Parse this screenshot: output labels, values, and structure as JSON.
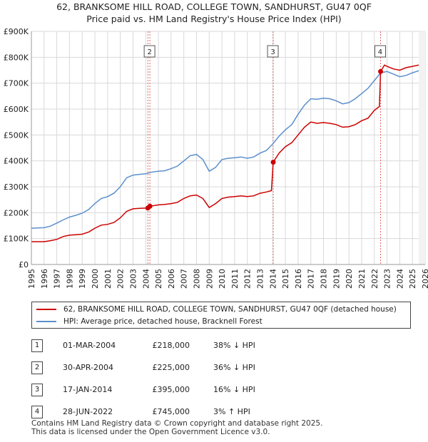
{
  "chart_data": {
    "type": "line",
    "title": "62, BRANKSOME HILL ROAD, COLLEGE TOWN, SANDHURST, GU47 0QF",
    "subtitle": "Price paid vs. HM Land Registry's House Price Index (HPI)",
    "xlim": [
      1995,
      2026
    ],
    "ylim": [
      0,
      900000
    ],
    "x_ticks": [
      "1995",
      "1996",
      "1997",
      "1998",
      "1999",
      "2000",
      "2001",
      "2002",
      "2003",
      "2004",
      "2005",
      "2006",
      "2007",
      "2008",
      "2009",
      "2010",
      "2011",
      "2012",
      "2013",
      "2014",
      "2015",
      "2016",
      "2017",
      "2018",
      "2019",
      "2020",
      "2021",
      "2022",
      "2023",
      "2024",
      "2025",
      "2026"
    ],
    "y_ticks": [
      {
        "value": 0,
        "label": "£0"
      },
      {
        "value": 100000,
        "label": "£100K"
      },
      {
        "value": 200000,
        "label": "£200K"
      },
      {
        "value": 300000,
        "label": "£300K"
      },
      {
        "value": 400000,
        "label": "£400K"
      },
      {
        "value": 500000,
        "label": "£500K"
      },
      {
        "value": 600000,
        "label": "£600K"
      },
      {
        "value": 700000,
        "label": "£700K"
      },
      {
        "value": 800000,
        "label": "£800K"
      },
      {
        "value": 900000,
        "label": "£900K"
      }
    ],
    "series": [
      {
        "name": "62, BRANKSOME HILL ROAD, COLLEGE TOWN, SANDHURST, GU47 0QF (detached house)",
        "color": "#cc0000",
        "points": [
          [
            1995.0,
            88000
          ],
          [
            1996.0,
            88000
          ],
          [
            1996.5,
            92000
          ],
          [
            1997.0,
            97000
          ],
          [
            1997.5,
            108000
          ],
          [
            1998.0,
            113000
          ],
          [
            1998.5,
            115000
          ],
          [
            1999.0,
            117000
          ],
          [
            1999.5,
            125000
          ],
          [
            2000.0,
            140000
          ],
          [
            2000.5,
            152000
          ],
          [
            2001.0,
            155000
          ],
          [
            2001.5,
            162000
          ],
          [
            2002.0,
            180000
          ],
          [
            2002.5,
            205000
          ],
          [
            2003.0,
            215000
          ],
          [
            2003.5,
            217000
          ],
          [
            2004.17,
            218000
          ],
          [
            2004.33,
            225000
          ],
          [
            2005.0,
            230000
          ],
          [
            2005.5,
            232000
          ],
          [
            2006.0,
            235000
          ],
          [
            2006.5,
            240000
          ],
          [
            2007.0,
            255000
          ],
          [
            2007.5,
            265000
          ],
          [
            2008.0,
            268000
          ],
          [
            2008.5,
            255000
          ],
          [
            2009.0,
            220000
          ],
          [
            2009.5,
            235000
          ],
          [
            2010.0,
            255000
          ],
          [
            2010.5,
            260000
          ],
          [
            2011.0,
            262000
          ],
          [
            2011.5,
            265000
          ],
          [
            2012.0,
            262000
          ],
          [
            2012.5,
            265000
          ],
          [
            2013.0,
            275000
          ],
          [
            2013.5,
            280000
          ],
          [
            2013.9,
            285000
          ],
          [
            2014.04,
            395000
          ],
          [
            2014.5,
            430000
          ],
          [
            2015.0,
            455000
          ],
          [
            2015.5,
            470000
          ],
          [
            2016.0,
            500000
          ],
          [
            2016.5,
            530000
          ],
          [
            2017.0,
            550000
          ],
          [
            2017.5,
            545000
          ],
          [
            2018.0,
            548000
          ],
          [
            2018.5,
            545000
          ],
          [
            2019.0,
            540000
          ],
          [
            2019.5,
            530000
          ],
          [
            2020.0,
            532000
          ],
          [
            2020.5,
            540000
          ],
          [
            2021.0,
            555000
          ],
          [
            2021.5,
            565000
          ],
          [
            2022.0,
            595000
          ],
          [
            2022.4,
            610000
          ],
          [
            2022.49,
            745000
          ],
          [
            2022.8,
            770000
          ],
          [
            2023.0,
            765000
          ],
          [
            2023.5,
            755000
          ],
          [
            2024.0,
            750000
          ],
          [
            2024.5,
            760000
          ],
          [
            2025.0,
            765000
          ],
          [
            2025.5,
            770000
          ]
        ]
      },
      {
        "name": "HPI: Average price, detached house, Bracknell Forest",
        "color": "#5b8fcc",
        "points": [
          [
            1995.0,
            140000
          ],
          [
            1996.0,
            142000
          ],
          [
            1996.5,
            148000
          ],
          [
            1997.0,
            160000
          ],
          [
            1997.5,
            172000
          ],
          [
            1998.0,
            183000
          ],
          [
            1998.5,
            190000
          ],
          [
            1999.0,
            198000
          ],
          [
            1999.5,
            212000
          ],
          [
            2000.0,
            235000
          ],
          [
            2000.5,
            255000
          ],
          [
            2001.0,
            262000
          ],
          [
            2001.5,
            275000
          ],
          [
            2002.0,
            300000
          ],
          [
            2002.5,
            335000
          ],
          [
            2003.0,
            345000
          ],
          [
            2003.5,
            348000
          ],
          [
            2004.0,
            350000
          ],
          [
            2004.5,
            357000
          ],
          [
            2005.0,
            360000
          ],
          [
            2005.5,
            362000
          ],
          [
            2006.0,
            370000
          ],
          [
            2006.5,
            380000
          ],
          [
            2007.0,
            400000
          ],
          [
            2007.5,
            420000
          ],
          [
            2008.0,
            425000
          ],
          [
            2008.5,
            405000
          ],
          [
            2009.0,
            360000
          ],
          [
            2009.5,
            375000
          ],
          [
            2010.0,
            405000
          ],
          [
            2010.5,
            410000
          ],
          [
            2011.0,
            412000
          ],
          [
            2011.5,
            415000
          ],
          [
            2012.0,
            410000
          ],
          [
            2012.5,
            415000
          ],
          [
            2013.0,
            430000
          ],
          [
            2013.5,
            440000
          ],
          [
            2014.0,
            465000
          ],
          [
            2014.5,
            495000
          ],
          [
            2015.0,
            520000
          ],
          [
            2015.5,
            540000
          ],
          [
            2016.0,
            580000
          ],
          [
            2016.5,
            615000
          ],
          [
            2017.0,
            640000
          ],
          [
            2017.5,
            638000
          ],
          [
            2018.0,
            642000
          ],
          [
            2018.5,
            640000
          ],
          [
            2019.0,
            632000
          ],
          [
            2019.5,
            620000
          ],
          [
            2020.0,
            625000
          ],
          [
            2020.5,
            640000
          ],
          [
            2021.0,
            660000
          ],
          [
            2021.5,
            680000
          ],
          [
            2022.0,
            710000
          ],
          [
            2022.5,
            740000
          ],
          [
            2023.0,
            745000
          ],
          [
            2023.5,
            735000
          ],
          [
            2024.0,
            725000
          ],
          [
            2024.5,
            730000
          ],
          [
            2025.0,
            740000
          ],
          [
            2025.5,
            748000
          ]
        ]
      }
    ],
    "transactions": [
      {
        "num": "1",
        "date": "01-MAR-2004",
        "x": 2004.17,
        "price": 218000,
        "price_label": "£218,000",
        "hpi": "38% ↓ HPI"
      },
      {
        "num": "2",
        "date": "30-APR-2004",
        "x": 2004.33,
        "price": 225000,
        "price_label": "£225,000",
        "hpi": "36% ↓ HPI"
      },
      {
        "num": "3",
        "date": "17-JAN-2014",
        "x": 2014.04,
        "price": 395000,
        "price_label": "£395,000",
        "hpi": "16% ↓ HPI"
      },
      {
        "num": "4",
        "date": "28-JUN-2022",
        "x": 2022.49,
        "price": 745000,
        "price_label": "£745,000",
        "hpi": "3% ↑ HPI"
      }
    ],
    "chart_labels_shown": [
      "2",
      "3",
      "4"
    ],
    "legend": [
      {
        "label": "62, BRANKSOME HILL ROAD, COLLEGE TOWN, SANDHURST, GU47 0QF (detached house)",
        "color": "#cc0000"
      },
      {
        "label": "HPI: Average price, detached house, Bracknell Forest",
        "color": "#5b8fcc"
      }
    ]
  },
  "footer": {
    "line1": "Contains HM Land Registry data © Crown copyright and database right 2025.",
    "line2": "This data is licensed under the Open Government Licence v3.0."
  }
}
